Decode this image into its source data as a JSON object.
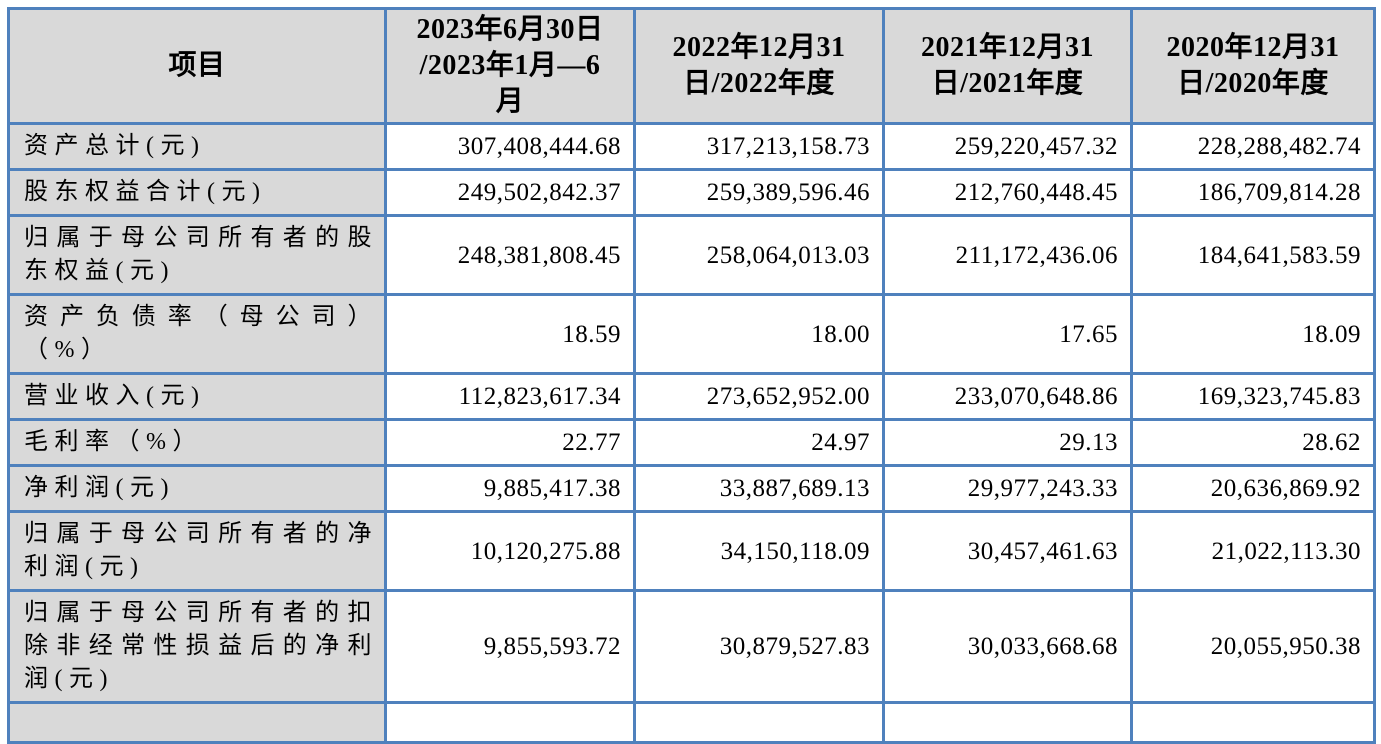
{
  "table": {
    "columns": [
      "项目",
      "2023年6月30日\n/2023年1月—6\n月",
      "2022年12月31\n日/2022年度",
      "2021年12月31\n日/2021年度",
      "2020年12月31\n日/2020年度"
    ],
    "rows": [
      {
        "label": "资产总计(元)",
        "values": [
          "307,408,444.68",
          "317,213,158.73",
          "259,220,457.32",
          "228,288,482.74"
        ]
      },
      {
        "label": "股东权益合计(元)",
        "values": [
          "249,502,842.37",
          "259,389,596.46",
          "212,760,448.45",
          "186,709,814.28"
        ]
      },
      {
        "label": "归属于母公司所有者的股东权益(元)",
        "values": [
          "248,381,808.45",
          "258,064,013.03",
          "211,172,436.06",
          "184,641,583.59"
        ]
      },
      {
        "label": "资产负债率（母公司）（%）",
        "values": [
          "18.59",
          "18.00",
          "17.65",
          "18.09"
        ]
      },
      {
        "label": "营业收入(元)",
        "values": [
          "112,823,617.34",
          "273,652,952.00",
          "233,070,648.86",
          "169,323,745.83"
        ]
      },
      {
        "label": "毛利率（%）",
        "values": [
          "22.77",
          "24.97",
          "29.13",
          "28.62"
        ]
      },
      {
        "label": "净利润(元)",
        "values": [
          "9,885,417.38",
          "33,887,689.13",
          "29,977,243.33",
          "20,636,869.92"
        ]
      },
      {
        "label": "归属于母公司所有者的净利润(元)",
        "values": [
          "10,120,275.88",
          "34,150,118.09",
          "30,457,461.63",
          "21,022,113.30"
        ]
      },
      {
        "label": "归属于母公司所有者的扣除非经常性损益后的净利润(元)",
        "values": [
          "9,855,593.72",
          "30,879,527.83",
          "30,033,668.68",
          "20,055,950.38"
        ]
      }
    ],
    "colors": {
      "border": "#4f81bd",
      "header_fill": "#d9d9d9",
      "label_fill": "#d9d9d9",
      "cell_fill": "#ffffff",
      "text": "#000000"
    }
  }
}
